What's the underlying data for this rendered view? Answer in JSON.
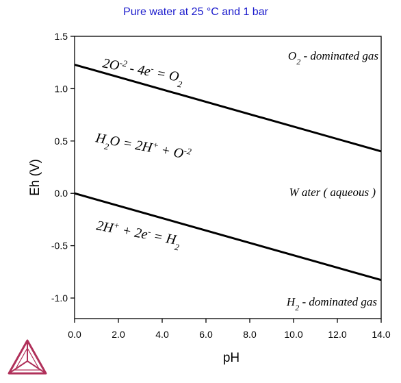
{
  "chart_data": {
    "type": "line",
    "title": "Pure water at 25 °C and 1 bar",
    "xlabel": "pH",
    "ylabel": "Eh (V)",
    "xlim": [
      0.0,
      14.0
    ],
    "ylim": [
      -1.2,
      1.5
    ],
    "xticks": [
      0.0,
      2.0,
      4.0,
      6.0,
      8.0,
      10.0,
      12.0,
      14.0
    ],
    "xtick_labels": [
      "0.0",
      "2.0",
      "4.0",
      "6.0",
      "8.0",
      "10.0",
      "12.0",
      "14.0"
    ],
    "yticks": [
      1.5,
      1.0,
      0.5,
      0.0,
      -0.5,
      -1.0
    ],
    "ytick_labels": [
      "1.5",
      "1.0",
      "0.5",
      "0.0",
      "-0.5",
      "-1.0"
    ],
    "grid": false,
    "series": [
      {
        "x": [
          0.0,
          14.0
        ],
        "y": [
          1.229,
          0.401
        ]
      },
      {
        "x": [
          0.0,
          14.0
        ],
        "y": [
          0.0,
          -0.828
        ]
      }
    ],
    "line_color": "#000000",
    "title_color": "#1a1acc",
    "annotations": {
      "o2_gas": {
        "main": "O",
        "sub": "2",
        "rest": " - dominated gas"
      },
      "o2_reaction": {
        "p1": "2O",
        "sup1": "-2",
        "p2": " - 4e",
        "sup2": "-",
        "p3": " = O",
        "sub3": "2"
      },
      "water_reaction": {
        "p1": "H",
        "sub1": "2",
        "p2": "O = 2H",
        "sup2": "+",
        "p3": " + O",
        "sup3": "-2"
      },
      "water_aqueous": "W ater ( aqueous )",
      "h2_reaction": {
        "p1": "2H",
        "sup1": "+",
        "p2": " + 2e",
        "sup2": "-",
        "p3": " = H",
        "sub3": "2"
      },
      "h2_gas": {
        "main": "H",
        "sub": "2",
        "rest": " - dominated gas"
      }
    }
  }
}
